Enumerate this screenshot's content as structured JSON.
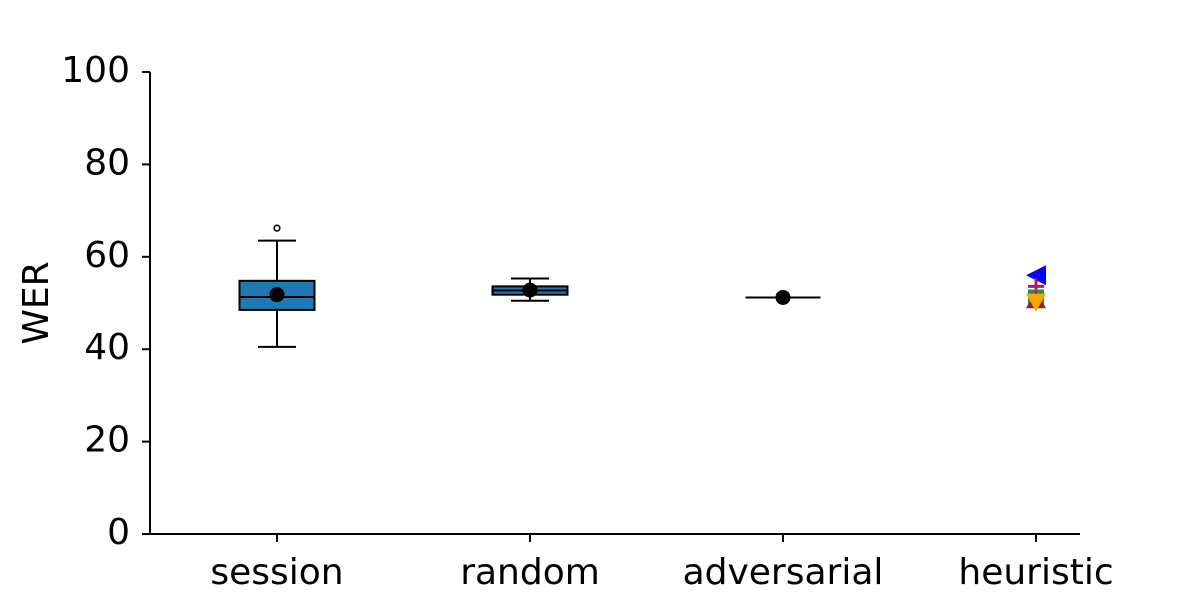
{
  "chart_data": {
    "type": "box",
    "title": "",
    "xlabel": "",
    "ylabel": "WER",
    "ylim": [
      0,
      100
    ],
    "yticks": [
      0,
      20,
      40,
      60,
      80,
      100
    ],
    "categories": [
      "session",
      "random",
      "adversarial",
      "heuristic"
    ],
    "boxes": [
      {
        "name": "session",
        "whisker_low": 40.5,
        "q1": 48.5,
        "median": 51.3,
        "q3": 54.8,
        "whisker_high": 63.5,
        "mean": 51.8,
        "outliers": [
          66.2
        ]
      },
      {
        "name": "random",
        "whisker_low": 50.5,
        "q1": 51.8,
        "median": 52.7,
        "q3": 53.6,
        "whisker_high": 55.3,
        "mean": 52.8,
        "outliers": []
      },
      {
        "name": "adversarial",
        "whisker_low": 51.2,
        "q1": 51.2,
        "median": 51.2,
        "q3": 51.2,
        "whisker_high": 51.2,
        "mean": 51.2,
        "outliers": []
      }
    ],
    "heuristic_points": [
      {
        "value": 56.0,
        "marker": "triangle-left",
        "color": "#0000ff"
      },
      {
        "value": 53.6,
        "marker": "plus",
        "color": "#b0186e"
      },
      {
        "value": 51.2,
        "marker": "square",
        "color": "#2e8b57"
      },
      {
        "value": 50.6,
        "marker": "triangle-up",
        "color": "#8b2a2a"
      },
      {
        "value": 50.3,
        "marker": "triangle-down",
        "color": "#ffa500"
      }
    ],
    "colors": {
      "box_fill": "#1f77b4",
      "line": "#000000"
    }
  }
}
